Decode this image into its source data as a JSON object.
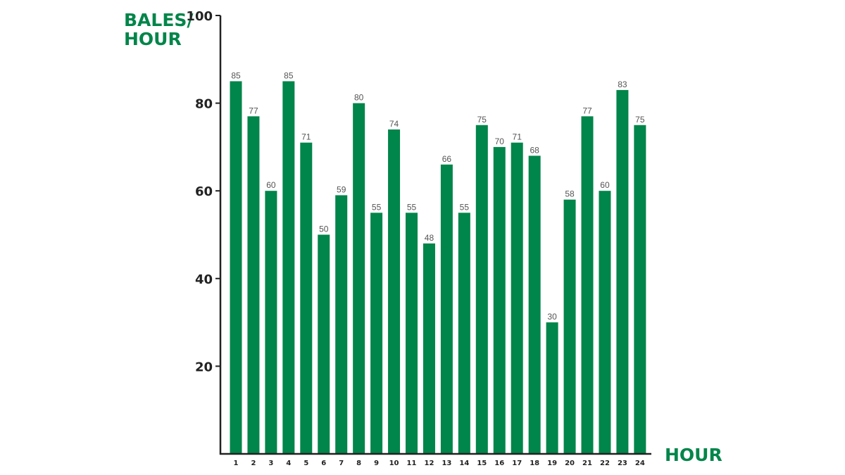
{
  "chart_data": {
    "type": "bar",
    "title": "",
    "ylabel_lines": [
      "BALES/",
      "HOUR"
    ],
    "xlabel": "HOUR",
    "categories": [
      "1",
      "2",
      "3",
      "4",
      "5",
      "6",
      "7",
      "8",
      "9",
      "10",
      "11",
      "12",
      "13",
      "14",
      "15",
      "16",
      "17",
      "18",
      "19",
      "20",
      "21",
      "22",
      "23",
      "24"
    ],
    "values": [
      85,
      77,
      60,
      85,
      71,
      50,
      59,
      80,
      55,
      74,
      55,
      48,
      66,
      55,
      75,
      70,
      71,
      68,
      30,
      58,
      77,
      60,
      83,
      75
    ],
    "ylim": [
      0,
      100
    ],
    "yticks": [
      20,
      40,
      60,
      80,
      100
    ],
    "grid": false,
    "legend": "none",
    "colors": {
      "bar": "#00854a",
      "axis_title": "#00854a",
      "axis": "#222222",
      "tick_label": "#222222",
      "value_label": "#555555"
    }
  }
}
